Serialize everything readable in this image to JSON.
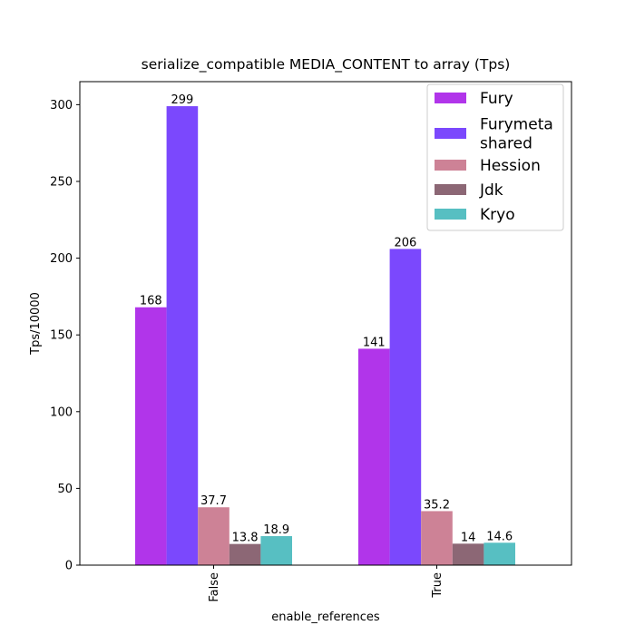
{
  "chart_data": {
    "type": "bar",
    "title": "serialize_compatible MEDIA_CONTENT to array (Tps)",
    "xlabel": "enable_references",
    "ylabel": "Tps/10000",
    "categories": [
      "False",
      "True"
    ],
    "ylim": [
      0,
      315
    ],
    "yticks": [
      0,
      50,
      100,
      150,
      200,
      250,
      300
    ],
    "legend_position": "top-right",
    "grid": false,
    "series": [
      {
        "name": "Fury",
        "name_lines": [
          "Fury"
        ],
        "color": "#b135ea",
        "values": [
          168,
          141
        ],
        "labels": [
          "168",
          "141"
        ]
      },
      {
        "name": "Furymeta shared",
        "name_lines": [
          "Furymeta",
          "shared"
        ],
        "color": "#7b48fd",
        "values": [
          299,
          206
        ],
        "labels": [
          "299",
          "206"
        ]
      },
      {
        "name": "Hession",
        "name_lines": [
          "Hession"
        ],
        "color": "#cd8296",
        "values": [
          37.7,
          35.2
        ],
        "labels": [
          "37.7",
          "35.2"
        ]
      },
      {
        "name": "Jdk",
        "name_lines": [
          "Jdk"
        ],
        "color": "#8c6775",
        "values": [
          13.8,
          14
        ],
        "labels": [
          "13.8",
          "14"
        ]
      },
      {
        "name": "Kryo",
        "name_lines": [
          "Kryo"
        ],
        "color": "#57bfc2",
        "values": [
          18.9,
          14.6
        ],
        "labels": [
          "18.9",
          "14.6"
        ]
      }
    ]
  }
}
